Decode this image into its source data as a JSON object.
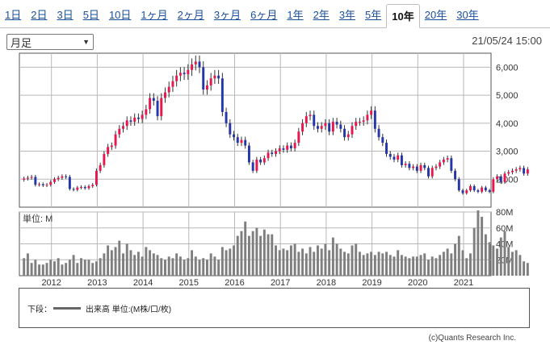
{
  "tabs": [
    "1日",
    "2日",
    "3日",
    "5日",
    "10日",
    "1ヶ月",
    "2ヶ月",
    "3ヶ月",
    "6ヶ月",
    "1年",
    "2年",
    "3年",
    "5年",
    "10年",
    "20年",
    "30年"
  ],
  "active_tab": "10年",
  "period_select": {
    "value": "月足"
  },
  "timestamp": "21/05/24 15:00",
  "colors": {
    "up": "#e8164e",
    "down": "#2436a8",
    "volume": "#7f7f7f",
    "grid": "#b8b8b8"
  },
  "chart_data": [
    {
      "type": "candlestick",
      "interval": "monthly",
      "y_ticks": [
        2000,
        3000,
        4000,
        5000,
        6000
      ],
      "y_tick_labels": [
        "2,000",
        "3,000",
        "4,000",
        "5,000",
        "6,000"
      ],
      "ylim": [
        1000,
        6500
      ],
      "x_tick_labels": [
        "2012",
        "2013",
        "2014",
        "2015",
        "2016",
        "2017",
        "2018",
        "2019",
        "2020",
        "2021"
      ],
      "x_ticks": [
        2012,
        2013,
        2014,
        2015,
        2016,
        2017,
        2018,
        2019,
        2020,
        2021
      ],
      "xlim": [
        2011.3,
        2021.6
      ],
      "start": 2011.4,
      "step": 0.08333,
      "close": [
        2020,
        2050,
        2080,
        1800,
        1820,
        1780,
        1800,
        1900,
        2000,
        2050,
        2100,
        2080,
        1650,
        1620,
        1700,
        1720,
        1680,
        1750,
        1800,
        2300,
        2500,
        2900,
        3150,
        3200,
        3600,
        3800,
        3900,
        4100,
        4050,
        4200,
        4150,
        4300,
        4500,
        4900,
        4800,
        4250,
        4900,
        5100,
        5300,
        5500,
        5700,
        5800,
        5750,
        5900,
        6100,
        6200,
        6000,
        5200,
        5350,
        5600,
        5700,
        5600,
        4400,
        4000,
        3600,
        3500,
        3300,
        3400,
        3200,
        2600,
        2300,
        2700,
        2600,
        2750,
        2950,
        2900,
        3000,
        3100,
        3050,
        3200,
        3100,
        3300,
        3700,
        4000,
        4250,
        4300,
        3900,
        3800,
        3900,
        4000,
        3700,
        4050,
        3950,
        3800,
        3500,
        3600,
        3900,
        4050,
        4050,
        4100,
        4300,
        4450,
        3800,
        3500,
        3300,
        2900,
        2800,
        2700,
        2850,
        2500,
        2550,
        2400,
        2450,
        2300,
        2500,
        2400,
        2100,
        2400,
        2450,
        2600,
        2700,
        2750,
        2300,
        2000,
        1600,
        1500,
        1600,
        1750,
        1600,
        1550,
        1700,
        1600,
        1550,
        2000,
        2100,
        1900,
        2200,
        2250,
        2300,
        2350,
        2400,
        2200,
        2350
      ],
      "volume_yticks": [
        20,
        40,
        60,
        80
      ],
      "volume_ytick_labels": [
        "20M",
        "40M",
        "60M",
        "80M"
      ],
      "volume_ylim": [
        0,
        80
      ],
      "volume_label": "単位: M",
      "volume": [
        22,
        28,
        16,
        20,
        14,
        14,
        16,
        20,
        18,
        22,
        14,
        16,
        20,
        26,
        16,
        22,
        20,
        20,
        16,
        18,
        22,
        28,
        38,
        32,
        36,
        44,
        28,
        40,
        32,
        26,
        30,
        24,
        36,
        32,
        28,
        26,
        22,
        20,
        24,
        22,
        28,
        24,
        20,
        22,
        32,
        24,
        20,
        22,
        20,
        28,
        24,
        20,
        36,
        32,
        34,
        38,
        50,
        56,
        68,
        50,
        56,
        60,
        50,
        58,
        52,
        52,
        38,
        32,
        34,
        32,
        38,
        40,
        30,
        34,
        28,
        36,
        30,
        38,
        34,
        40,
        32,
        48,
        40,
        34,
        30,
        28,
        38,
        40,
        30,
        26,
        28,
        30,
        26,
        30,
        28,
        30,
        26,
        24,
        32,
        26,
        24,
        22,
        24,
        24,
        26,
        28,
        20,
        24,
        22,
        26,
        30,
        34,
        28,
        40,
        50,
        32,
        22,
        28,
        60,
        82,
        74,
        52,
        42,
        38,
        34,
        48,
        56,
        36,
        30,
        32,
        26,
        18,
        16
      ]
    }
  ],
  "legend": {
    "label": "下段：",
    "series": "出来高 単位:(M株/口/枚)"
  },
  "copyright": "(c)Quants Research Inc."
}
